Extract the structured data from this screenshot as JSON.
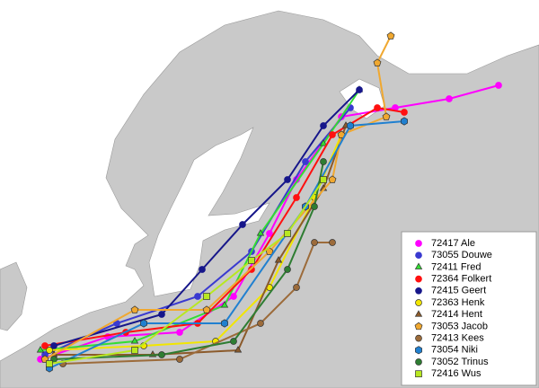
{
  "legend": {
    "entries": [
      {
        "label": "72417 Ale",
        "color": "#ff00ff",
        "marker": "circle"
      },
      {
        "label": "73055 Douwe",
        "color": "#3a3ad0",
        "marker": "circle"
      },
      {
        "label": "72411 Fred",
        "color": "#33dd33",
        "marker": "triangle"
      },
      {
        "label": "72364 Folkert",
        "color": "#ff1010",
        "marker": "circle"
      },
      {
        "label": "72415 Geert",
        "color": "#16168a",
        "marker": "circle"
      },
      {
        "label": "72363 Henk",
        "color": "#f2e600",
        "marker": "circle-outlined"
      },
      {
        "label": "72414 Hent",
        "color": "#8b5a2b",
        "marker": "triangle"
      },
      {
        "label": "73053 Jacob",
        "color": "#f0a830",
        "marker": "pentagon"
      },
      {
        "label": "72413 Kees",
        "color": "#9c6b3a",
        "marker": "circle-outlined"
      },
      {
        "label": "73054 Niki",
        "color": "#2080d0",
        "marker": "hexagon"
      },
      {
        "label": "73052 Trinus",
        "color": "#2e7d32",
        "marker": "circle-outlined"
      },
      {
        "label": "72416 Wus",
        "color": "#b8e820",
        "marker": "square"
      }
    ]
  }
}
